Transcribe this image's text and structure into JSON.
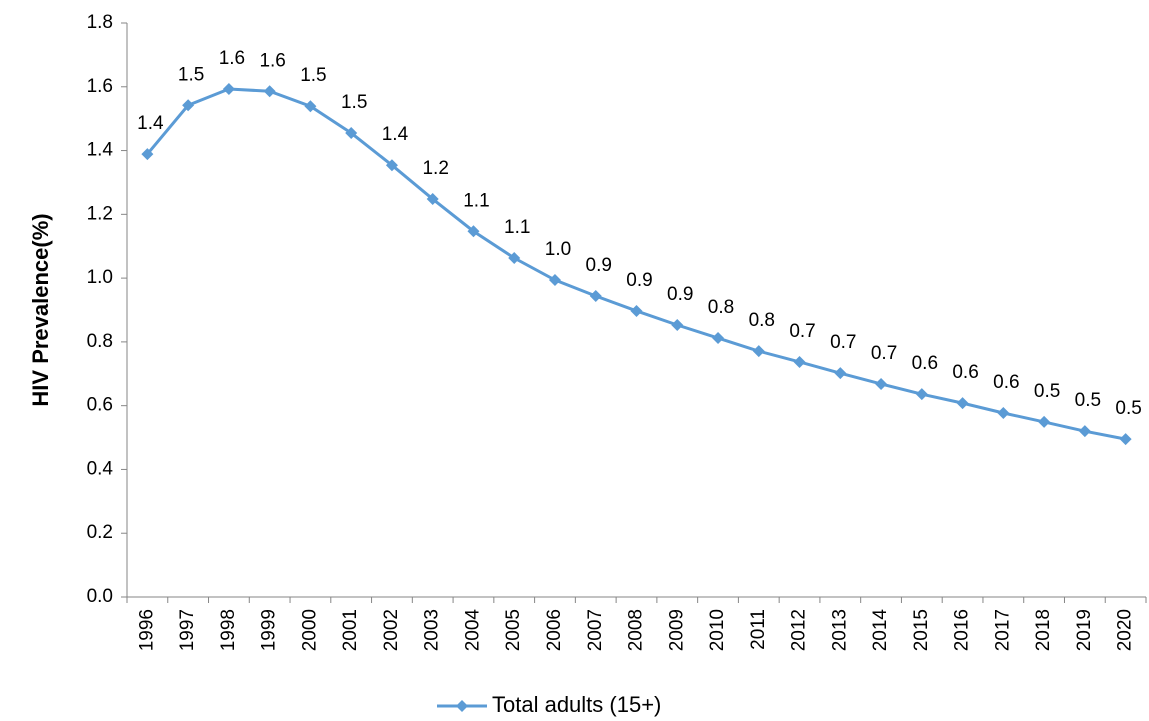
{
  "chart_data": {
    "type": "line",
    "y_label": "HIV Prevalence(%)",
    "categories": [
      "1996",
      "1997",
      "1998",
      "1999",
      "2000",
      "2001",
      "2002",
      "2003",
      "2004",
      "2005",
      "2006",
      "2007",
      "2008",
      "2009",
      "2010",
      "2011",
      "2012",
      "2013",
      "2014",
      "2015",
      "2016",
      "2017",
      "2018",
      "2019",
      "2020"
    ],
    "series": [
      {
        "name": "Total adults (15+)",
        "color": "#5b9bd5",
        "values": [
          1.389,
          1.542,
          1.593,
          1.586,
          1.539,
          1.455,
          1.354,
          1.248,
          1.147,
          1.063,
          0.994,
          0.944,
          0.897,
          0.853,
          0.812,
          0.771,
          0.737,
          0.702,
          0.668,
          0.636,
          0.608,
          0.577,
          0.549,
          0.52,
          0.495
        ],
        "value_labels": [
          "1.4",
          "1.5",
          "1.6",
          "1.6",
          "1.5",
          "1.5",
          "1.4",
          "1.2",
          "1.1",
          "1.1",
          "1.0",
          "0.9",
          "0.9",
          "0.9",
          "0.8",
          "0.8",
          "0.7",
          "0.7",
          "0.7",
          "0.6",
          "0.6",
          "0.6",
          "0.5",
          "0.5",
          "0.5"
        ]
      }
    ],
    "ylim": [
      0,
      1.8
    ],
    "yticks": [
      {
        "value": 0,
        "label": "0.0"
      },
      0.2,
      0.4,
      0.6,
      0.8,
      {
        "value": 1,
        "label": "1.0"
      },
      1.2,
      1.4,
      1.6,
      1.8
    ],
    "legend": "bottom"
  }
}
